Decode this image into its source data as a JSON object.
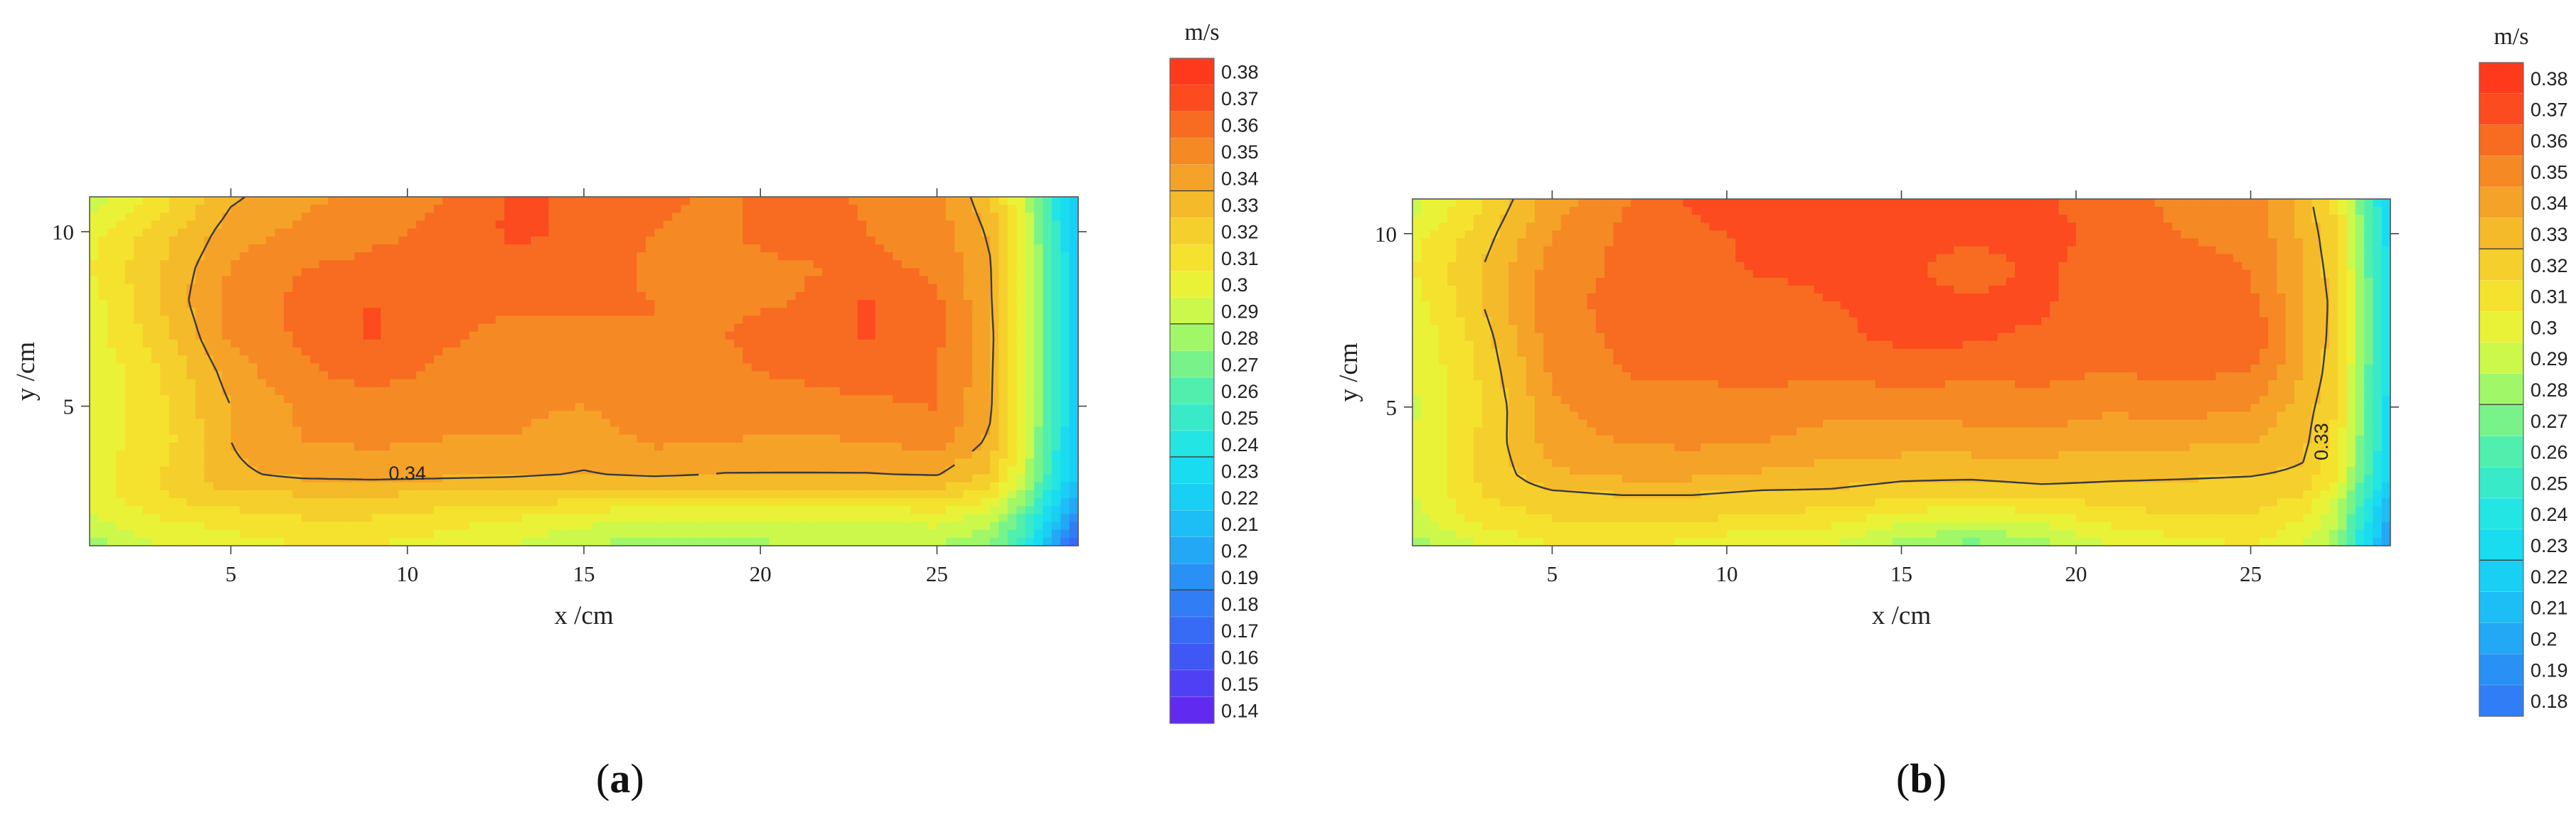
{
  "colors": {
    "palette_low": "#6a1ff0",
    "palette_mid": "#19e3f0",
    "palette_high": "#ff3a1c",
    "contour_line": "#3a3a3a"
  },
  "chart_data": [
    {
      "type": "heatmap",
      "panel_label": "a",
      "title": "",
      "xlabel": "x /cm",
      "ylabel": "y /cm",
      "xlim": [
        1,
        29
      ],
      "ylim": [
        1,
        11
      ],
      "x_ticks": [
        5,
        10,
        15,
        20,
        25
      ],
      "y_ticks": [
        5,
        10
      ],
      "colorbar_unit": "m/s",
      "colorbar_levels": [
        0.14,
        0.15,
        0.16,
        0.17,
        0.18,
        0.19,
        0.2,
        0.21,
        0.22,
        0.23,
        0.24,
        0.25,
        0.26,
        0.27,
        0.28,
        0.29,
        0.3,
        0.31,
        0.32,
        0.33,
        0.34,
        0.35,
        0.36,
        0.37,
        0.38
      ],
      "colorbar_labels": [
        "0.14",
        "0.15",
        "0.16",
        "0.17",
        "0.18",
        "0.19",
        "0.2",
        "0.21",
        "0.22",
        "0.23",
        "0.24",
        "0.25",
        "0.26",
        "0.27",
        "0.28",
        "0.29",
        "0.3",
        "0.31",
        "0.32",
        "0.33",
        "0.34",
        "0.35",
        "0.36",
        "0.37",
        "0.38"
      ],
      "colorbar_marked_levels": [
        0.19,
        0.24,
        0.29,
        0.34
      ],
      "contour_label": "0.34",
      "x": [
        1,
        3,
        5,
        7,
        9,
        11,
        13,
        15,
        17,
        19,
        21,
        23,
        25,
        26.5,
        27.5,
        28.3,
        29
      ],
      "y": [
        1,
        1.8,
        2.5,
        3,
        4,
        5,
        6,
        7,
        8,
        9,
        10,
        11
      ],
      "z": [
        [
          0.285,
          0.3,
          0.305,
          0.31,
          0.31,
          0.305,
          0.3,
          0.29,
          0.285,
          0.285,
          0.29,
          0.29,
          0.29,
          0.28,
          0.255,
          0.205,
          0.165
        ],
        [
          0.3,
          0.31,
          0.315,
          0.32,
          0.32,
          0.315,
          0.31,
          0.305,
          0.3,
          0.3,
          0.3,
          0.3,
          0.305,
          0.295,
          0.265,
          0.225,
          0.19
        ],
        [
          0.305,
          0.32,
          0.33,
          0.33,
          0.33,
          0.33,
          0.33,
          0.325,
          0.325,
          0.325,
          0.325,
          0.325,
          0.325,
          0.315,
          0.285,
          0.24,
          0.21
        ],
        [
          0.305,
          0.32,
          0.338,
          0.342,
          0.343,
          0.342,
          0.341,
          0.339,
          0.341,
          0.339,
          0.339,
          0.339,
          0.34,
          0.328,
          0.295,
          0.25,
          0.215
        ],
        [
          0.305,
          0.315,
          0.34,
          0.35,
          0.352,
          0.35,
          0.35,
          0.345,
          0.352,
          0.35,
          0.349,
          0.35,
          0.354,
          0.338,
          0.3,
          0.255,
          0.22
        ],
        [
          0.3,
          0.318,
          0.34,
          0.352,
          0.355,
          0.352,
          0.352,
          0.35,
          0.356,
          0.355,
          0.355,
          0.358,
          0.361,
          0.342,
          0.303,
          0.258,
          0.222
        ],
        [
          0.3,
          0.32,
          0.345,
          0.358,
          0.365,
          0.358,
          0.353,
          0.352,
          0.358,
          0.358,
          0.362,
          0.365,
          0.36,
          0.343,
          0.304,
          0.258,
          0.222
        ],
        [
          0.305,
          0.325,
          0.352,
          0.362,
          0.372,
          0.362,
          0.357,
          0.356,
          0.36,
          0.36,
          0.365,
          0.371,
          0.362,
          0.344,
          0.305,
          0.258,
          0.222
        ],
        [
          0.305,
          0.33,
          0.355,
          0.362,
          0.37,
          0.362,
          0.362,
          0.362,
          0.36,
          0.358,
          0.36,
          0.371,
          0.362,
          0.342,
          0.304,
          0.257,
          0.222
        ],
        [
          0.31,
          0.33,
          0.35,
          0.36,
          0.362,
          0.362,
          0.368,
          0.365,
          0.358,
          0.355,
          0.358,
          0.362,
          0.358,
          0.341,
          0.303,
          0.257,
          0.222
        ],
        [
          0.305,
          0.325,
          0.345,
          0.352,
          0.358,
          0.362,
          0.372,
          0.368,
          0.36,
          0.357,
          0.371,
          0.36,
          0.356,
          0.338,
          0.3,
          0.255,
          0.22
        ],
        [
          0.295,
          0.315,
          0.338,
          0.348,
          0.352,
          0.36,
          0.372,
          0.368,
          0.362,
          0.358,
          0.365,
          0.358,
          0.352,
          0.333,
          0.295,
          0.25,
          0.215
        ]
      ]
    },
    {
      "type": "heatmap",
      "panel_label": "b",
      "title": "",
      "xlabel": "x /cm",
      "ylabel": "y /cm",
      "xlim": [
        1,
        29
      ],
      "ylim": [
        1,
        11
      ],
      "x_ticks": [
        5,
        10,
        15,
        20,
        25
      ],
      "y_ticks": [
        5,
        10
      ],
      "colorbar_unit": "m/s",
      "colorbar_levels": [
        0.18,
        0.19,
        0.2,
        0.21,
        0.22,
        0.23,
        0.24,
        0.25,
        0.26,
        0.27,
        0.28,
        0.29,
        0.3,
        0.31,
        0.32,
        0.33,
        0.34,
        0.35,
        0.36,
        0.37,
        0.38
      ],
      "colorbar_labels": [
        "0.18",
        "0.19",
        "0.2",
        "0.21",
        "0.22",
        "0.23",
        "0.24",
        "0.25",
        "0.26",
        "0.27",
        "0.28",
        "0.29",
        "0.3",
        "0.31",
        "0.32",
        "0.33",
        "0.34",
        "0.35",
        "0.36",
        "0.37",
        "0.38"
      ],
      "colorbar_marked_levels": [
        0.23,
        0.28,
        0.33
      ],
      "contour_label": "0.33",
      "x": [
        1,
        3,
        5,
        7,
        9,
        11,
        13,
        15,
        17,
        19,
        21,
        23,
        25,
        26.5,
        27.5,
        28.3,
        29
      ],
      "y": [
        1,
        1.8,
        2.5,
        3,
        4,
        5,
        6,
        7,
        8,
        9,
        10,
        11
      ],
      "z": [
        [
          0.285,
          0.3,
          0.31,
          0.315,
          0.305,
          0.3,
          0.3,
          0.285,
          0.275,
          0.285,
          0.3,
          0.305,
          0.31,
          0.3,
          0.285,
          0.235,
          0.195
        ],
        [
          0.295,
          0.315,
          0.32,
          0.322,
          0.322,
          0.318,
          0.315,
          0.305,
          0.3,
          0.305,
          0.315,
          0.32,
          0.32,
          0.31,
          0.29,
          0.245,
          0.205
        ],
        [
          0.3,
          0.32,
          0.328,
          0.33,
          0.33,
          0.328,
          0.328,
          0.325,
          0.322,
          0.325,
          0.325,
          0.325,
          0.325,
          0.32,
          0.3,
          0.255,
          0.215
        ],
        [
          0.3,
          0.322,
          0.338,
          0.342,
          0.342,
          0.338,
          0.335,
          0.332,
          0.332,
          0.334,
          0.332,
          0.331,
          0.33,
          0.328,
          0.31,
          0.265,
          0.225
        ],
        [
          0.3,
          0.322,
          0.345,
          0.35,
          0.352,
          0.35,
          0.345,
          0.345,
          0.345,
          0.345,
          0.342,
          0.342,
          0.34,
          0.333,
          0.315,
          0.27,
          0.23
        ],
        [
          0.298,
          0.32,
          0.348,
          0.358,
          0.355,
          0.358,
          0.353,
          0.352,
          0.355,
          0.357,
          0.352,
          0.355,
          0.35,
          0.335,
          0.32,
          0.272,
          0.232
        ],
        [
          0.3,
          0.322,
          0.352,
          0.36,
          0.362,
          0.362,
          0.362,
          0.365,
          0.362,
          0.362,
          0.36,
          0.362,
          0.36,
          0.34,
          0.322,
          0.274,
          0.234
        ],
        [
          0.3,
          0.325,
          0.355,
          0.362,
          0.362,
          0.362,
          0.368,
          0.372,
          0.372,
          0.368,
          0.362,
          0.362,
          0.371,
          0.342,
          0.324,
          0.275,
          0.235
        ],
        [
          0.305,
          0.33,
          0.358,
          0.362,
          0.362,
          0.365,
          0.37,
          0.372,
          0.372,
          0.372,
          0.362,
          0.371,
          0.362,
          0.342,
          0.325,
          0.275,
          0.235
        ],
        [
          0.31,
          0.33,
          0.355,
          0.362,
          0.365,
          0.372,
          0.372,
          0.372,
          0.365,
          0.372,
          0.365,
          0.362,
          0.36,
          0.34,
          0.323,
          0.274,
          0.234
        ],
        [
          0.305,
          0.325,
          0.35,
          0.362,
          0.368,
          0.372,
          0.375,
          0.375,
          0.372,
          0.375,
          0.365,
          0.36,
          0.358,
          0.338,
          0.32,
          0.272,
          0.232
        ],
        [
          0.295,
          0.318,
          0.345,
          0.358,
          0.372,
          0.375,
          0.375,
          0.375,
          0.375,
          0.372,
          0.362,
          0.358,
          0.355,
          0.335,
          0.315,
          0.268,
          0.228
        ]
      ]
    }
  ]
}
